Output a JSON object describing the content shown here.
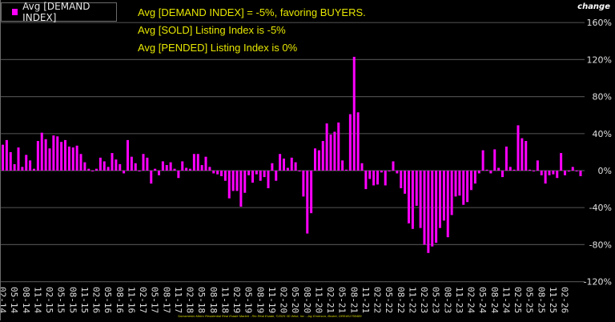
{
  "legend": {
    "label": "Avg [DEMAND INDEX]",
    "color": "#ff00ff"
  },
  "annotations": [
    "Avg [DEMAND INDEX] = -5%, favoring BUYERS.",
    "Avg [SOLD] Listing Index is -5%",
    "Avg [PENDED] Listing Index is 0%"
  ],
  "y_axis_title": "change",
  "footer": "Sacramento Metro Residential Real Estate Market - Rio Real Estate, ©2025 3D Wise, Inc - Jay Emerson, Broker, DRE#01759489",
  "colors": {
    "background": "#000000",
    "bar": "#ff00ff",
    "grid": "#4a4a4a",
    "annotation": "#e6e600",
    "axis_text": "#e0e0e0"
  },
  "chart_data": {
    "type": "bar",
    "title": "Avg [DEMAND INDEX]",
    "xlabel": "",
    "ylabel": "change",
    "ylim": [
      -120,
      160
    ],
    "yticks": [
      "160%",
      "120%",
      "80%",
      "40%",
      "0%",
      "-40%",
      "-80%",
      "-120%"
    ],
    "ytick_values": [
      160,
      120,
      80,
      40,
      0,
      -40,
      -80,
      -120
    ],
    "grid": true,
    "legend_position": "top-left",
    "x_tick_labels": [
      "02-14",
      "05-14",
      "08-14",
      "11-14",
      "02-15",
      "05-15",
      "08-15",
      "11-15",
      "02-16",
      "05-16",
      "08-16",
      "11-16",
      "02-17",
      "05-17",
      "08-17",
      "11-17",
      "02-18",
      "05-18",
      "08-18",
      "11-18",
      "02-19",
      "05-19",
      "08-19",
      "11-19",
      "02-20",
      "05-20",
      "08-20",
      "11-20",
      "02-21",
      "05-21",
      "08-21",
      "11-21",
      "02-22",
      "05-22",
      "08-22",
      "11-22",
      "02-23",
      "05-23",
      "08-23",
      "11-23",
      "02-24",
      "05-24",
      "08-24",
      "11-24",
      "02-25",
      "05-25",
      "08-25",
      "11-25",
      "02-26"
    ],
    "series": [
      {
        "name": "Avg [DEMAND INDEX]",
        "values": [
          28,
          33,
          20,
          7,
          25,
          4,
          17,
          11,
          2,
          32,
          41,
          34,
          24,
          38,
          37,
          31,
          33,
          26,
          25,
          27,
          18,
          9,
          2,
          0,
          2,
          14,
          10,
          4,
          19,
          12,
          7,
          -3,
          33,
          15,
          8,
          0,
          18,
          14,
          -14,
          2,
          -5,
          10,
          6,
          9,
          2,
          -8,
          10,
          3,
          2,
          18,
          18,
          6,
          15,
          4,
          -3,
          -4,
          -6,
          -11,
          -30,
          -22,
          -22,
          -39,
          -24,
          -5,
          -13,
          -4,
          -11,
          -7,
          -19,
          8,
          -11,
          18,
          13,
          3,
          14,
          9,
          0,
          -28,
          -68,
          -46,
          24,
          22,
          32,
          51,
          39,
          42,
          52,
          11,
          1,
          61,
          123,
          63,
          8,
          -20,
          -9,
          -16,
          -15,
          -2,
          -16,
          0,
          10,
          -3,
          -19,
          -25,
          -57,
          -63,
          -38,
          -62,
          -80,
          -89,
          -82,
          -78,
          -62,
          -54,
          -72,
          -48,
          -28,
          -27,
          -37,
          -34,
          -21,
          -14,
          -3,
          22,
          1,
          -3,
          23,
          3,
          -7,
          26,
          4,
          1,
          49,
          35,
          32,
          1,
          0,
          11,
          -5,
          -14,
          -5,
          -4,
          -8,
          19,
          -5,
          -1,
          4,
          0,
          -6
        ]
      }
    ]
  }
}
